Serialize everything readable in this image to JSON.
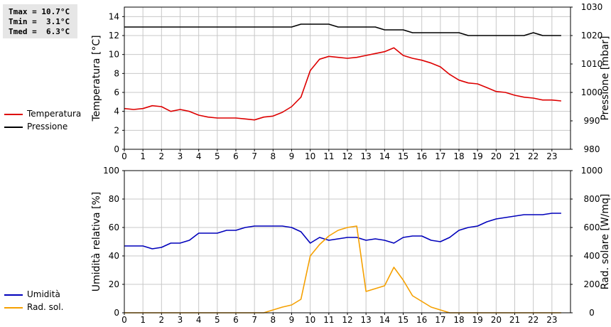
{
  "stats": {
    "tmax": "Tmax = 10.7°C",
    "tmin": "Tmin =  3.1°C",
    "tmed": "Tmed =  6.3°C"
  },
  "colors": {
    "temperatura": "#dd0000",
    "pressione": "#000000",
    "umidita": "#0000bb",
    "rad_sol": "#f5a000",
    "grid": "#c8c8c8"
  },
  "legend_top": [
    {
      "label": "Temperatura",
      "color": "#dd0000"
    },
    {
      "label": "Pressione",
      "color": "#000000"
    }
  ],
  "legend_bottom": [
    {
      "label": "Umidità",
      "color": "#0000bb"
    },
    {
      "label": "Rad. sol.",
      "color": "#f5a000"
    }
  ],
  "chart_data": [
    {
      "type": "line",
      "xlabel": "",
      "ylabel": "Temperatura [°C]",
      "y2label": "Pressione [mbar]",
      "xlim": [
        0,
        24
      ],
      "ylim": [
        0,
        15
      ],
      "y2lim": [
        980,
        1030
      ],
      "xticks": [
        0,
        1,
        2,
        3,
        4,
        5,
        6,
        7,
        8,
        9,
        10,
        11,
        12,
        13,
        14,
        15,
        16,
        17,
        18,
        19,
        20,
        21,
        22,
        23
      ],
      "yticks": [
        0,
        2,
        4,
        6,
        8,
        10,
        12,
        14
      ],
      "y2ticks": [
        980,
        990,
        1000,
        1010,
        1020,
        1030
      ],
      "grid": true,
      "legend": "left",
      "series": [
        {
          "name": "Temperatura",
          "axis": "left",
          "color": "#dd0000",
          "x": [
            0,
            0.5,
            1,
            1.5,
            2,
            2.5,
            3,
            3.5,
            4,
            4.5,
            5,
            5.5,
            6,
            6.5,
            7,
            7.5,
            8,
            8.5,
            9,
            9.5,
            10,
            10.5,
            11,
            11.5,
            12,
            12.5,
            13,
            13.5,
            14,
            14.5,
            15,
            15.5,
            16,
            16.5,
            17,
            17.5,
            18,
            18.5,
            19,
            19.5,
            20,
            20.5,
            21,
            21.5,
            22,
            22.5,
            23,
            23.5
          ],
          "values": [
            4.3,
            4.2,
            4.3,
            4.6,
            4.5,
            4.0,
            4.2,
            4.0,
            3.6,
            3.4,
            3.3,
            3.3,
            3.3,
            3.2,
            3.1,
            3.4,
            3.5,
            3.9,
            4.5,
            5.5,
            8.3,
            9.5,
            9.8,
            9.7,
            9.6,
            9.7,
            9.9,
            10.1,
            10.3,
            10.7,
            9.9,
            9.6,
            9.4,
            9.1,
            8.7,
            7.9,
            7.3,
            7.0,
            6.9,
            6.5,
            6.1,
            6.0,
            5.7,
            5.5,
            5.4,
            5.2,
            5.2,
            5.1
          ]
        },
        {
          "name": "Pressione",
          "axis": "right",
          "color": "#000000",
          "x": [
            0,
            0.5,
            1,
            1.5,
            2,
            2.5,
            3,
            3.5,
            4,
            4.5,
            5,
            5.5,
            6,
            6.5,
            7,
            7.5,
            8,
            8.5,
            9,
            9.5,
            10,
            10.5,
            11,
            11.5,
            12,
            12.5,
            13,
            13.5,
            14,
            14.5,
            15,
            15.5,
            16,
            16.5,
            17,
            17.5,
            18,
            18.5,
            19,
            19.5,
            20,
            20.5,
            21,
            21.5,
            22,
            22.5,
            23,
            23.5
          ],
          "values": [
            1023,
            1023,
            1023,
            1023,
            1023,
            1023,
            1023,
            1023,
            1023,
            1023,
            1023,
            1023,
            1023,
            1023,
            1023,
            1023,
            1023,
            1023,
            1023,
            1024,
            1024,
            1024,
            1024,
            1023,
            1023,
            1023,
            1023,
            1023,
            1022,
            1022,
            1022,
            1021,
            1021,
            1021,
            1021,
            1021,
            1021,
            1020,
            1020,
            1020,
            1020,
            1020,
            1020,
            1020,
            1021,
            1020,
            1020,
            1020
          ]
        }
      ]
    },
    {
      "type": "line",
      "xlabel": "",
      "ylabel": "Umidità relativa [%]",
      "y2label": "Rad. solare [W/mq]",
      "xlim": [
        0,
        24
      ],
      "ylim": [
        0,
        100
      ],
      "y2lim": [
        0,
        1000
      ],
      "xticks": [
        0,
        1,
        2,
        3,
        4,
        5,
        6,
        7,
        8,
        9,
        10,
        11,
        12,
        13,
        14,
        15,
        16,
        17,
        18,
        19,
        20,
        21,
        22,
        23
      ],
      "yticks": [
        0,
        20,
        40,
        60,
        80,
        100
      ],
      "y2ticks": [
        0,
        200,
        400,
        600,
        800,
        1000
      ],
      "grid": true,
      "legend": "left",
      "series": [
        {
          "name": "Umidità",
          "axis": "left",
          "color": "#0000bb",
          "x": [
            0,
            0.5,
            1,
            1.5,
            2,
            2.5,
            3,
            3.5,
            4,
            4.5,
            5,
            5.5,
            6,
            6.5,
            7,
            7.5,
            8,
            8.5,
            9,
            9.5,
            10,
            10.5,
            11,
            11.5,
            12,
            12.5,
            13,
            13.5,
            14,
            14.5,
            15,
            15.5,
            16,
            16.5,
            17,
            17.5,
            18,
            18.5,
            19,
            19.5,
            20,
            20.5,
            21,
            21.5,
            22,
            22.5,
            23,
            23.5
          ],
          "values": [
            47,
            47,
            47,
            45,
            46,
            49,
            49,
            51,
            56,
            56,
            56,
            58,
            58,
            60,
            61,
            61,
            61,
            61,
            60,
            57,
            49,
            53,
            51,
            52,
            53,
            53,
            51,
            52,
            51,
            49,
            53,
            54,
            54,
            51,
            50,
            53,
            58,
            60,
            61,
            64,
            66,
            67,
            68,
            69,
            69,
            69,
            70,
            70
          ]
        },
        {
          "name": "Rad. sol.",
          "axis": "right",
          "color": "#f5a000",
          "x": [
            0,
            0.5,
            1,
            1.5,
            2,
            2.5,
            3,
            3.5,
            4,
            4.5,
            5,
            5.5,
            6,
            6.5,
            7,
            7.5,
            8,
            8.5,
            9,
            9.5,
            10,
            10.5,
            11,
            11.5,
            12,
            12.5,
            13,
            13.5,
            14,
            14.5,
            15,
            15.5,
            16,
            16.5,
            17,
            17.5,
            18,
            18.5,
            19,
            19.5,
            20,
            20.5,
            21,
            21.5,
            22,
            22.5,
            23,
            23.5
          ],
          "values": [
            0,
            0,
            0,
            0,
            0,
            0,
            0,
            0,
            0,
            0,
            0,
            0,
            0,
            0,
            0,
            0,
            20,
            40,
            55,
            95,
            400,
            480,
            540,
            580,
            600,
            610,
            150,
            170,
            190,
            320,
            230,
            120,
            80,
            40,
            20,
            0,
            0,
            0,
            0,
            0,
            0,
            0,
            0,
            0,
            0,
            0,
            0,
            0
          ]
        }
      ]
    }
  ]
}
